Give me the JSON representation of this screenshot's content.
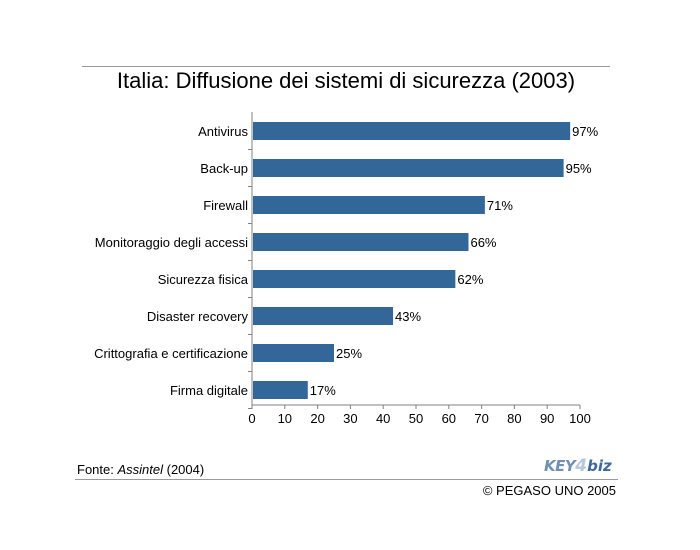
{
  "title": "Italia: Diffusione dei sistemi di sicurezza (2003)",
  "source": {
    "prefix": "Fonte: ",
    "name": "Assintel",
    "suffix": " (2004)"
  },
  "copyright": "© PEGASO UNO 2005",
  "logo": {
    "part1": "KEY",
    "part2": "4",
    "part3": "biz"
  },
  "colors": {
    "bar": "#336699",
    "axis": "#808080"
  },
  "chart_data": {
    "type": "bar",
    "orientation": "horizontal",
    "categories": [
      "Antivirus",
      "Back-up",
      "Firewall",
      "Monitoraggio degli accessi",
      "Sicurezza fisica",
      "Disaster recovery",
      "Crittografia e certificazione",
      "Firma digitale"
    ],
    "values": [
      97,
      95,
      71,
      66,
      62,
      43,
      25,
      17
    ],
    "value_labels": [
      "97%",
      "95%",
      "71%",
      "66%",
      "62%",
      "43%",
      "25%",
      "17%"
    ],
    "xlim": [
      0,
      100
    ],
    "xticks": [
      0,
      10,
      20,
      30,
      40,
      50,
      60,
      70,
      80,
      90,
      100
    ],
    "grid": false
  }
}
